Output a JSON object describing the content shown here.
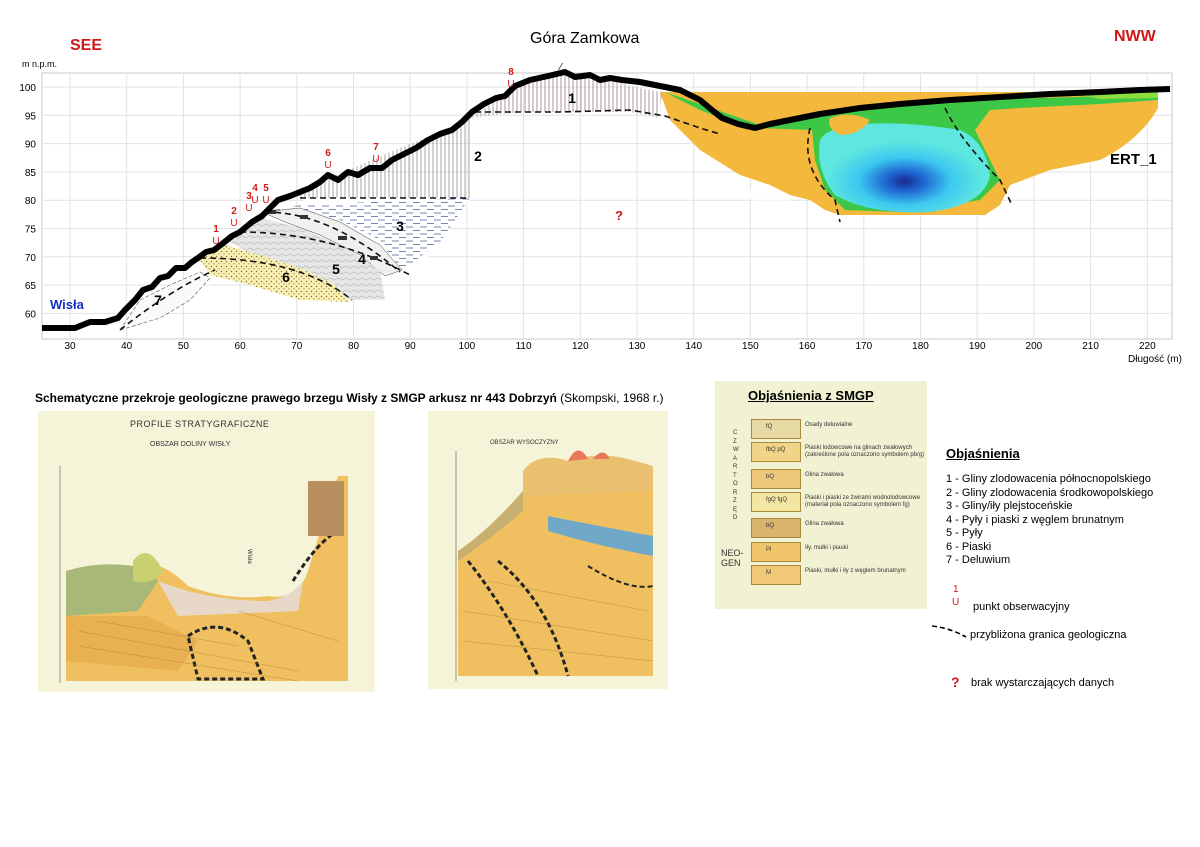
{
  "header": {
    "left_direction": "SEE",
    "title": "Góra Zamkowa",
    "right_direction": "NWW"
  },
  "profile": {
    "y_axis_unit": "m n.p.m.",
    "y_ticks": [
      "100",
      "95",
      "90",
      "85",
      "80",
      "75",
      "70",
      "65",
      "60"
    ],
    "x_ticks": [
      "30",
      "40",
      "50",
      "60",
      "70",
      "80",
      "90",
      "100",
      "110",
      "120",
      "130",
      "140",
      "150",
      "160",
      "170",
      "180",
      "190",
      "200",
      "210",
      "220"
    ],
    "x_axis_label": "Długość (m)",
    "river_label": "Wisła",
    "ert_label": "ERT_1",
    "unknown_marker": "?",
    "layer_numbers": [
      "1",
      "2",
      "3",
      "4",
      "5",
      "6",
      "7"
    ],
    "observation_points": [
      "1",
      "2",
      "3",
      "4",
      "5",
      "6",
      "7",
      "8"
    ],
    "observation_symbol": "U"
  },
  "caption": {
    "bold": "Schematyczne przekroje geologiczne prawego brzegu Wisły z SMGP arkusz nr 443 Dobrzyń",
    "normal": " (Skompski, 1968 r.)"
  },
  "map_panel_1": {
    "title": "PROFILE STRATYGRAFICZNE",
    "subtitle": "OBSZAR DOLINY WISŁY",
    "river": "Wisła"
  },
  "map_panel_2": {
    "title": "OBSZAR WYSOCZYZNY"
  },
  "smgp_legend": {
    "title": "Objaśnienia z SMGP",
    "era_1": "C Z W A R T O R Z Ę D",
    "era_2": "NEO- GEN",
    "rows": [
      {
        "sym": "fQ",
        "text": "Osady deluwialne",
        "color": "#e7d9a4"
      },
      {
        "sym": "fbQ pQ",
        "text": "Piaski lodowcowe na glinach zwałowych (zakreślone pola oznaczono symbolem pb/g)",
        "color": "#f2d488"
      },
      {
        "sym": "bQ",
        "text": "Glina zwałowa",
        "color": "#eec77a"
      },
      {
        "sym": "fgQ fgQ",
        "text": "Piaski i piaski ze żwirami wodnolodowcowe (materiał pola oznaczono symbolem fg)",
        "color": "#f3e6a3"
      },
      {
        "sym": "bQ",
        "text": "Glina zwałowa",
        "color": "#d9b46c"
      },
      {
        "sym": "Pl",
        "text": "Iły, mułki i piaski",
        "color": "#f0c56c"
      },
      {
        "sym": "M",
        "text": "Piaski, mułki i iły z węglem brunatnym",
        "color": "#f0c878"
      }
    ]
  },
  "explanations": {
    "title": "Objaśnienia",
    "items": [
      "1 - Gliny zlodowacenia  północnopolskiego",
      "2 - Gliny zlodowacenia środkowopolskiego",
      "3 - Gliny/iły plejstoceńskie",
      "4 - Pyły i piaski  z węglem brunatnym",
      "5 - Pyły",
      "6 - Piaski",
      "7 - Deluwium"
    ],
    "obs_number": "1",
    "obs_symbol": "U",
    "obs_label": "punkt obserwacyjny",
    "boundary_label": "przybliżona granica  geologiczna",
    "question_mark": "?",
    "question_label": "brak wystarczających  danych"
  },
  "colors": {
    "terrain_line": "#000000",
    "accent_red": "#d01818",
    "accent_blue": "#1430c8",
    "ert_orange": "#f4b83c",
    "ert_green": "#3cc846",
    "ert_cyan": "#3cd2f0",
    "ert_blue": "#1e64d2"
  }
}
